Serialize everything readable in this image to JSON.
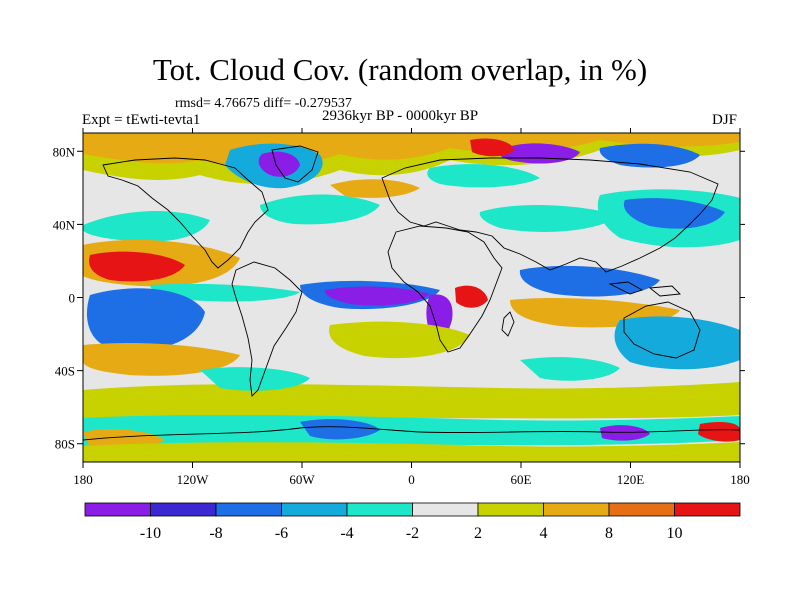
{
  "header": {
    "title": "Tot. Cloud Cov. (random overlap, in %)",
    "stats": "rmsd= 4.76675 diff= -0.279537",
    "period": "2936kyr BP - 0000kyr BP",
    "experiment": "Expt = tEwti-tevta1",
    "season": "DJF"
  },
  "map": {
    "projection": "cylindrical equidistant",
    "lon_range": [
      -180,
      180
    ],
    "lat_range": [
      -90,
      90
    ],
    "lon_ticks": [
      {
        "value": -180,
        "label": "180"
      },
      {
        "value": -120,
        "label": "120W"
      },
      {
        "value": -60,
        "label": "60W"
      },
      {
        "value": 0,
        "label": "0"
      },
      {
        "value": 60,
        "label": "60E"
      },
      {
        "value": 120,
        "label": "120E"
      },
      {
        "value": 180,
        "label": "180"
      }
    ],
    "lat_ticks": [
      {
        "value": 80,
        "label": "80N"
      },
      {
        "value": 40,
        "label": "40N"
      },
      {
        "value": 0,
        "label": "0"
      },
      {
        "value": -40,
        "label": "40S"
      },
      {
        "value": -80,
        "label": "80S"
      }
    ]
  },
  "colorbar": {
    "levels": [
      -10,
      -8,
      -6,
      -4,
      -2,
      2,
      4,
      8,
      10
    ],
    "labels": [
      "-10",
      "-8",
      "-6",
      "-4",
      "-2",
      "2",
      "4",
      "8",
      "10"
    ],
    "colors": [
      "#8a1ee6",
      "#3c28d2",
      "#1e6ee6",
      "#14aadc",
      "#1ee6c8",
      "#e6e6e6",
      "#c8d200",
      "#e6aa14",
      "#e66e14",
      "#e61414"
    ]
  }
}
